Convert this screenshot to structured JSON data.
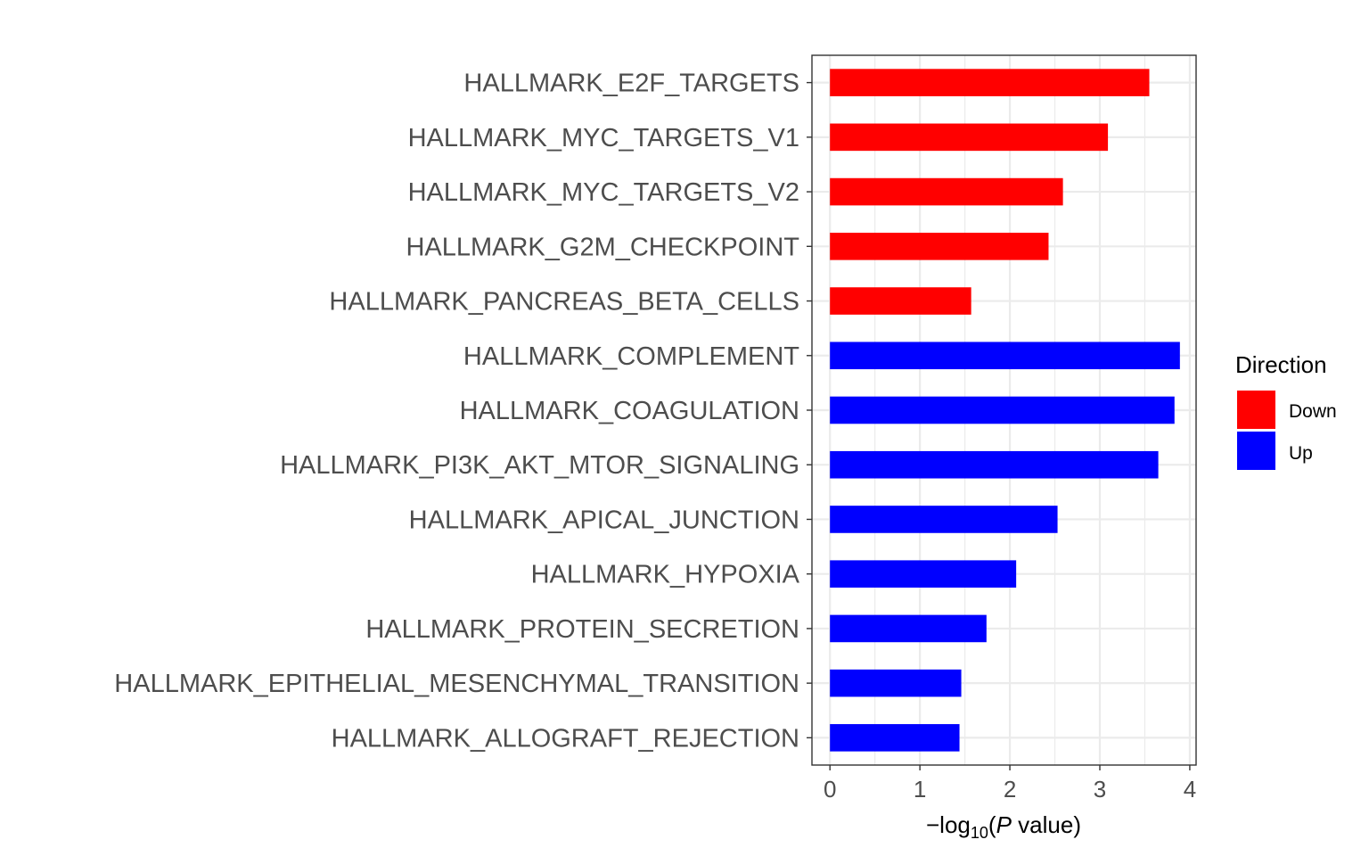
{
  "chart_data": {
    "type": "bar",
    "orientation": "horizontal",
    "categories": [
      "HALLMARK_E2F_TARGETS",
      "HALLMARK_MYC_TARGETS_V1",
      "HALLMARK_MYC_TARGETS_V2",
      "HALLMARK_G2M_CHECKPOINT",
      "HALLMARK_PANCREAS_BETA_CELLS",
      "HALLMARK_COMPLEMENT",
      "HALLMARK_COAGULATION",
      "HALLMARK_PI3K_AKT_MTOR_SIGNALING",
      "HALLMARK_APICAL_JUNCTION",
      "HALLMARK_HYPOXIA",
      "HALLMARK_PROTEIN_SECRETION",
      "HALLMARK_EPITHELIAL_MESENCHYMAL_TRANSITION",
      "HALLMARK_ALLOGRAFT_REJECTION"
    ],
    "values": [
      3.55,
      3.09,
      2.59,
      2.43,
      1.57,
      3.89,
      3.83,
      3.65,
      2.53,
      2.07,
      1.74,
      1.46,
      1.44
    ],
    "groups": [
      "Down",
      "Down",
      "Down",
      "Down",
      "Down",
      "Up",
      "Up",
      "Up",
      "Up",
      "Up",
      "Up",
      "Up",
      "Up"
    ],
    "xlabel_prefix": "−log",
    "xlabel_sub": "10",
    "xlabel_paren_open": "(",
    "xlabel_italic": "P",
    "xlabel_suffix": " value)",
    "xlim": [
      -0.2,
      4.07
    ],
    "xticks": [
      0,
      1,
      2,
      3,
      4
    ],
    "xtick_labels": [
      "0",
      "1",
      "2",
      "3",
      "4"
    ],
    "grid": true,
    "legend": {
      "title": "Direction",
      "placement": "right",
      "entries": [
        {
          "label": "Down",
          "color": "#ff0000"
        },
        {
          "label": "Up",
          "color": "#0000ff"
        }
      ]
    }
  }
}
